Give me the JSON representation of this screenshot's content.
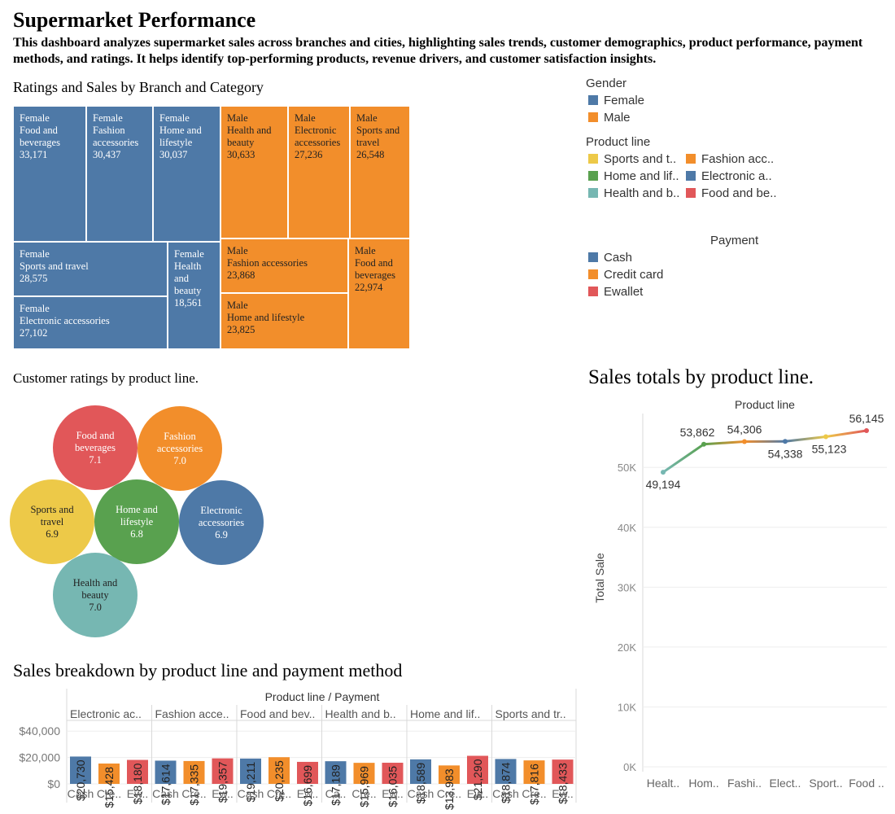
{
  "dashboard": {
    "title": "Supermarket Performance",
    "subtitle": "This dashboard analyzes supermarket sales across branches and cities, highlighting sales trends, customer demographics, product performance, payment methods, and ratings. It helps identify top-performing products, revenue drivers, and customer satisfaction insights."
  },
  "sections": {
    "treemap_title": "Ratings and Sales by Branch and Category",
    "bubbles_title": "Customer ratings by product line.",
    "line_title": "Sales totals by product line.",
    "bars_title": "Sales breakdown by product line and payment method"
  },
  "legends": {
    "gender": {
      "title": "Gender",
      "items": [
        {
          "label": "Female",
          "color": "#4E79A7"
        },
        {
          "label": "Male",
          "color": "#F28E2B"
        }
      ]
    },
    "product_line": {
      "title": "Product line",
      "items": [
        {
          "label": "Sports and t..",
          "color": "#EDC948"
        },
        {
          "label": "Fashion acc..",
          "color": "#F28E2B"
        },
        {
          "label": "Home and lif..",
          "color": "#59A14F"
        },
        {
          "label": "Electronic a..",
          "color": "#4E79A7"
        },
        {
          "label": "Health and b..",
          "color": "#76B7B2"
        },
        {
          "label": "Food and be..",
          "color": "#E15759"
        }
      ]
    },
    "payment": {
      "title": "Payment",
      "items": [
        {
          "label": "Cash",
          "color": "#4E79A7"
        },
        {
          "label": "Credit card",
          "color": "#F28E2B"
        },
        {
          "label": "Ewallet",
          "color": "#E15759"
        }
      ]
    }
  },
  "chart_data": [
    {
      "type": "treemap",
      "title": "Ratings and Sales by Branch and Category",
      "cells": [
        {
          "gender": "Female",
          "category": "Food and beverages",
          "value": 33171,
          "label": "33,171",
          "color": "#4E79A7"
        },
        {
          "gender": "Female",
          "category": "Fashion accessories",
          "value": 30437,
          "label": "30,437",
          "color": "#4E79A7"
        },
        {
          "gender": "Female",
          "category": "Home and lifestyle",
          "value": 30037,
          "label": "30,037",
          "color": "#4E79A7"
        },
        {
          "gender": "Female",
          "category": "Sports and travel",
          "value": 28575,
          "label": "28,575",
          "color": "#4E79A7"
        },
        {
          "gender": "Female",
          "category": "Health and beauty",
          "value": 18561,
          "label": "18,561",
          "color": "#4E79A7"
        },
        {
          "gender": "Female",
          "category": "Electronic accessories",
          "value": 27102,
          "label": "27,102",
          "color": "#4E79A7"
        },
        {
          "gender": "Male",
          "category": "Health and beauty",
          "value": 30633,
          "label": "30,633",
          "color": "#F28E2B"
        },
        {
          "gender": "Male",
          "category": "Electronic accessories",
          "value": 27236,
          "label": "27,236",
          "color": "#F28E2B"
        },
        {
          "gender": "Male",
          "category": "Sports and travel",
          "value": 26548,
          "label": "26,548",
          "color": "#F28E2B"
        },
        {
          "gender": "Male",
          "category": "Fashion accessories",
          "value": 23868,
          "label": "23,868",
          "color": "#F28E2B"
        },
        {
          "gender": "Male",
          "category": "Food and beverages",
          "value": 22974,
          "label": "22,974",
          "color": "#F28E2B"
        },
        {
          "gender": "Male",
          "category": "Home and lifestyle",
          "value": 23825,
          "label": "23,825",
          "color": "#F28E2B"
        }
      ]
    },
    {
      "type": "bubble",
      "title": "Customer ratings by product line.",
      "items": [
        {
          "name": "Food and beverages",
          "rating": 7.1,
          "label": "7.1",
          "color": "#E15759"
        },
        {
          "name": "Fashion accessories",
          "rating": 7.0,
          "label": "7.0",
          "color": "#F28E2B"
        },
        {
          "name": "Sports and travel",
          "rating": 6.9,
          "label": "6.9",
          "color": "#EDC948"
        },
        {
          "name": "Home and lifestyle",
          "rating": 6.8,
          "label": "6.8",
          "color": "#59A14F"
        },
        {
          "name": "Electronic accessories",
          "rating": 6.9,
          "label": "6.9",
          "color": "#4E79A7"
        },
        {
          "name": "Health and beauty",
          "rating": 7.0,
          "label": "7.0",
          "color": "#76B7B2"
        }
      ]
    },
    {
      "type": "line",
      "title": "Sales totals by product line.",
      "header": "Product line",
      "ylabel": "Total Sale",
      "ylim": [
        0,
        59000
      ],
      "yticks": [
        0,
        10000,
        20000,
        30000,
        40000,
        50000
      ],
      "ytick_labels": [
        "0K",
        "10K",
        "20K",
        "30K",
        "40K",
        "50K"
      ],
      "grid": true,
      "categories": [
        "Healt..",
        "Hom..",
        "Fashi..",
        "Elect..",
        "Sport..",
        "Food .."
      ],
      "values": [
        49194,
        53862,
        54306,
        54338,
        55123,
        56145
      ],
      "value_labels": [
        "49,194",
        "53,862",
        "54,306",
        "54,338",
        "55,123",
        "56,145"
      ],
      "colors": [
        "#76B7B2",
        "#59A14F",
        "#F28E2B",
        "#4E79A7",
        "#EDC948",
        "#E15759"
      ]
    },
    {
      "type": "bar",
      "title": "Sales breakdown by product line and payment method",
      "header": "Product line  /  Payment",
      "groups": [
        "Electronic ac..",
        "Fashion acce..",
        "Food and bev..",
        "Health and b..",
        "Home and lif..",
        "Sports and tr.."
      ],
      "payment_ticks": [
        [
          "Cash",
          "Cre..",
          "Ew.."
        ],
        [
          "Cash",
          "Cre..",
          "Ew.."
        ],
        [
          "Cash",
          "Cre..",
          "Ew.."
        ],
        [
          "Ca..",
          "Cre..",
          "Ew.."
        ],
        [
          "Cash",
          "Cre..",
          "Ew.."
        ],
        [
          "Cash",
          "Cre..",
          "Ew.."
        ]
      ],
      "series": [
        {
          "name": "Cash",
          "color": "#4E79A7",
          "values": [
            20730,
            17614,
            19211,
            17189,
            18589,
            18874
          ],
          "labels": [
            "$20,730",
            "$17,614",
            "$19,211",
            "$17,189",
            "$18,589",
            "$18,874"
          ]
        },
        {
          "name": "Credit card",
          "color": "#F28E2B",
          "values": [
            15428,
            17335,
            20235,
            15969,
            13983,
            17816
          ],
          "labels": [
            "$15,428",
            "$17,335",
            "$20,235",
            "$15,969",
            "$13,983",
            "$17,816"
          ]
        },
        {
          "name": "Ewallet",
          "color": "#E15759",
          "values": [
            18180,
            19357,
            16699,
            16035,
            21290,
            18433
          ],
          "labels": [
            "$18,180",
            "$19,357",
            "$16,699",
            "$16,035",
            "$21,290",
            "$18,433"
          ]
        }
      ],
      "ylim": [
        0,
        50000
      ],
      "yticks": [
        0,
        20000,
        40000
      ],
      "ytick_labels": [
        "$0",
        "$20,000",
        "$40,000"
      ]
    }
  ]
}
